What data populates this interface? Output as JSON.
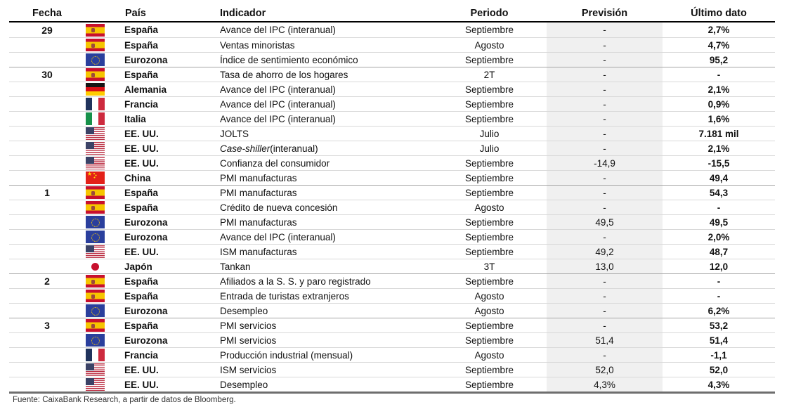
{
  "colors": {
    "row_sep": "#d9d9d9",
    "group_sep": "#a6a6a6",
    "header_border": "#000000",
    "bottom_border": "#6e6e6e",
    "forecast_bg": "#f0f0f0",
    "text": "#111111"
  },
  "table": {
    "columns": [
      "Fecha",
      "País",
      "Indicador",
      "Periodo",
      "Previsión",
      "Último dato"
    ],
    "rows": [
      {
        "date": "29",
        "flag": "es",
        "country": "España",
        "indicator": "Avance del IPC (interanual)",
        "period": "Septiembre",
        "forecast": "-",
        "latest": "2,7%",
        "group_start": false
      },
      {
        "date": "",
        "flag": "es",
        "country": "España",
        "indicator": "Ventas minoristas",
        "period": "Agosto",
        "forecast": "-",
        "latest": "4,7%",
        "group_start": false
      },
      {
        "date": "",
        "flag": "eu",
        "country": "Eurozona",
        "indicator": "Índice de sentimiento económico",
        "period": "Septiembre",
        "forecast": "-",
        "latest": "95,2",
        "group_start": false
      },
      {
        "date": "30",
        "flag": "es",
        "country": "España",
        "indicator": "Tasa de ahorro de los hogares",
        "period": "2T",
        "forecast": "-",
        "latest": "-",
        "group_start": true
      },
      {
        "date": "",
        "flag": "de",
        "country": "Alemania",
        "indicator": "Avance del IPC (interanual)",
        "period": "Septiembre",
        "forecast": "-",
        "latest": "2,1%",
        "group_start": false
      },
      {
        "date": "",
        "flag": "fr",
        "country": "Francia",
        "indicator": "Avance del IPC (interanual)",
        "period": "Septiembre",
        "forecast": "-",
        "latest": "0,9%",
        "group_start": false
      },
      {
        "date": "",
        "flag": "it",
        "country": "Italia",
        "indicator": "Avance del IPC (interanual)",
        "period": "Septiembre",
        "forecast": "-",
        "latest": "1,6%",
        "group_start": false
      },
      {
        "date": "",
        "flag": "us",
        "country": "EE. UU.",
        "indicator": "JOLTS",
        "period": "Julio",
        "forecast": "-",
        "latest": "7.181 mil",
        "group_start": false
      },
      {
        "date": "",
        "flag": "us",
        "country": "EE. UU.",
        "indicator_italic": "Case-shiller",
        "indicator": " (interanual)",
        "period": "Julio",
        "forecast": "-",
        "latest": "2,1%",
        "group_start": false
      },
      {
        "date": "",
        "flag": "us",
        "country": "EE. UU.",
        "indicator": "Confianza del consumidor",
        "period": "Septiembre",
        "forecast": "-14,9",
        "latest": "-15,5",
        "group_start": false
      },
      {
        "date": "",
        "flag": "cn",
        "country": "China",
        "indicator": "PMI manufacturas",
        "period": "Septiembre",
        "forecast": "-",
        "latest": "49,4",
        "group_start": false
      },
      {
        "date": "1",
        "flag": "es",
        "country": "España",
        "indicator": "PMI manufacturas",
        "period": "Septiembre",
        "forecast": "-",
        "latest": "54,3",
        "group_start": true
      },
      {
        "date": "",
        "flag": "es",
        "country": "España",
        "indicator": "Crédito de nueva concesión",
        "period": "Agosto",
        "forecast": "-",
        "latest": "-",
        "group_start": false
      },
      {
        "date": "",
        "flag": "eu",
        "country": "Eurozona",
        "indicator": "PMI manufacturas",
        "period": "Septiembre",
        "forecast": "49,5",
        "latest": "49,5",
        "group_start": false
      },
      {
        "date": "",
        "flag": "eu",
        "country": "Eurozona",
        "indicator": "Avance del IPC (interanual)",
        "period": "Septiembre",
        "forecast": "-",
        "latest": "2,0%",
        "group_start": false
      },
      {
        "date": "",
        "flag": "us",
        "country": "EE. UU.",
        "indicator": "ISM manufacturas",
        "period": "Septiembre",
        "forecast": "49,2",
        "latest": "48,7",
        "group_start": false
      },
      {
        "date": "",
        "flag": "jp",
        "country": "Japón",
        "indicator": "Tankan",
        "period": "3T",
        "forecast": "13,0",
        "latest": "12,0",
        "group_start": false
      },
      {
        "date": "2",
        "flag": "es",
        "country": "España",
        "indicator": "Afiliados a la S. S. y paro registrado",
        "period": "Septiembre",
        "forecast": "-",
        "latest": "-",
        "group_start": true
      },
      {
        "date": "",
        "flag": "es",
        "country": "España",
        "indicator": "Entrada de turistas extranjeros",
        "period": "Agosto",
        "forecast": "-",
        "latest": "-",
        "group_start": false
      },
      {
        "date": "",
        "flag": "eu",
        "country": "Eurozona",
        "indicator": "Desempleo",
        "period": "Agosto",
        "forecast": "-",
        "latest": "6,2%",
        "group_start": false
      },
      {
        "date": "3",
        "flag": "es",
        "country": "España",
        "indicator": "PMI servicios",
        "period": "Septiembre",
        "forecast": "-",
        "latest": "53,2",
        "group_start": true
      },
      {
        "date": "",
        "flag": "eu",
        "country": "Eurozona",
        "indicator": "PMI servicios",
        "period": "Septiembre",
        "forecast": "51,4",
        "latest": "51,4",
        "group_start": false
      },
      {
        "date": "",
        "flag": "fr",
        "country": "Francia",
        "indicator": "Producción industrial (mensual)",
        "period": "Agosto",
        "forecast": "-",
        "latest": "-1,1",
        "group_start": false
      },
      {
        "date": "",
        "flag": "us",
        "country": "EE. UU.",
        "indicator": "ISM servicios",
        "period": "Septiembre",
        "forecast": "52,0",
        "latest": "52,0",
        "group_start": false
      },
      {
        "date": "",
        "flag": "us",
        "country": "EE. UU.",
        "indicator": "Desempleo",
        "period": "Septiembre",
        "forecast": "4,3%",
        "latest": "4,3%",
        "group_start": false
      }
    ]
  },
  "footer": {
    "source": "Fuente: CaixaBank Research, a partir de datos de Bloomberg."
  }
}
